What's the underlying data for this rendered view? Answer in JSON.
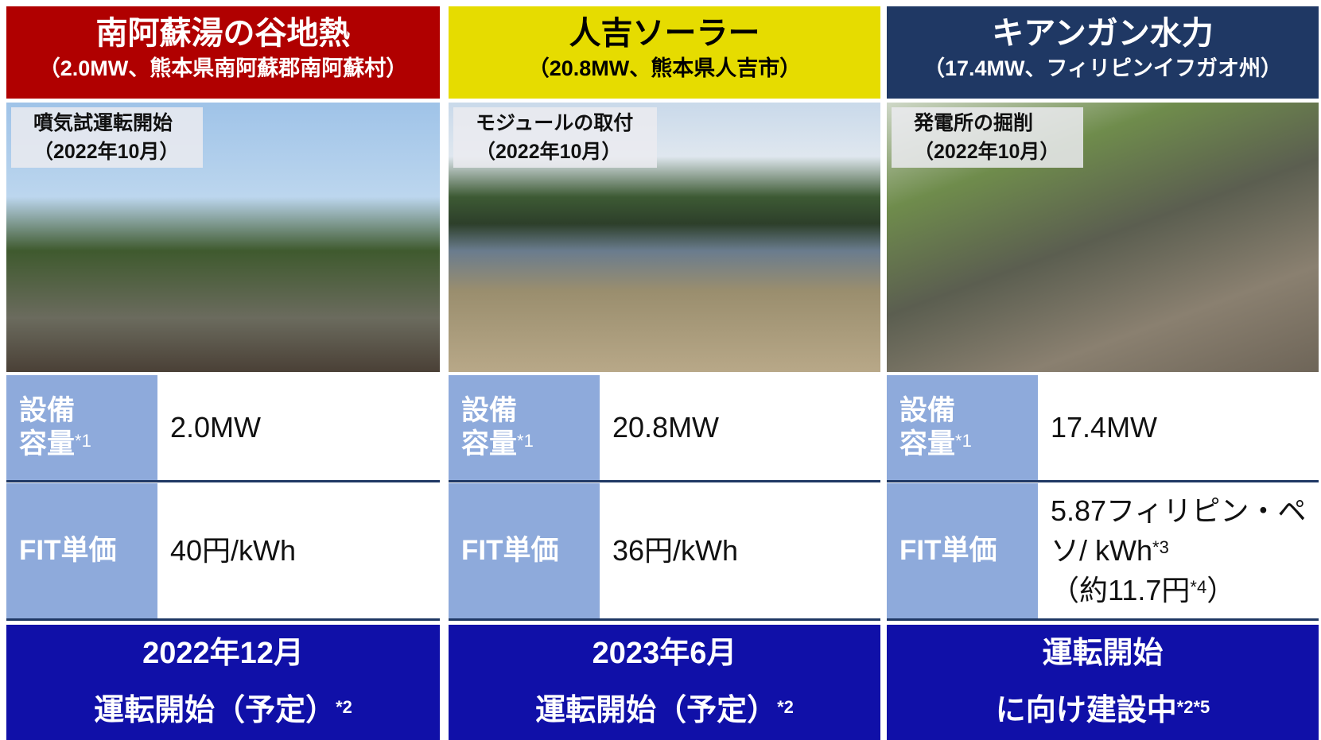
{
  "panels": [
    {
      "title": "南阿蘇湯の谷地熱",
      "subtitle": "（2.0MW、熊本県南阿蘇郡南阿蘇村）",
      "photo_caption": [
        "噴気試運転開始",
        "（2022年10月）"
      ],
      "capacity_label": [
        "設備",
        "容量"
      ],
      "capacity_note": "*1",
      "capacity": "2.0MW",
      "fit_label": "FIT単価",
      "fit": [
        {
          "text": "40円/kWh"
        }
      ],
      "status": [
        "2022年12月",
        "運転開始（予定）"
      ],
      "status_note": "*2"
    },
    {
      "title": "人吉ソーラー",
      "subtitle": "（20.8MW、熊本県人吉市）",
      "photo_caption": [
        "モジュールの取付",
        "（2022年10月）"
      ],
      "capacity_label": [
        "設備",
        "容量"
      ],
      "capacity_note": "*1",
      "capacity": "20.8MW",
      "fit_label": "FIT単価",
      "fit": [
        {
          "text": "36円/kWh"
        }
      ],
      "status": [
        "2023年6月",
        "運転開始（予定）"
      ],
      "status_note": "*2"
    },
    {
      "title": "キアンガン水力",
      "subtitle": "（17.4MW、フィリピンイフガオ州）",
      "photo_caption": [
        "発電所の掘削",
        "（2022年10月）"
      ],
      "capacity_label": [
        "設備",
        "容量"
      ],
      "capacity_note": "*1",
      "capacity": "17.4MW",
      "fit_label": "FIT単価",
      "fit": [
        {
          "text": "5.87フィリピン・ペ"
        },
        {
          "text": "ソ/ kWh",
          "note": "*3"
        },
        {
          "text": "（約11.7円",
          "note": "*4",
          "tail": "）"
        }
      ],
      "status": [
        "運転開始",
        "に向け建設中"
      ],
      "status_note": "*2*5"
    }
  ]
}
